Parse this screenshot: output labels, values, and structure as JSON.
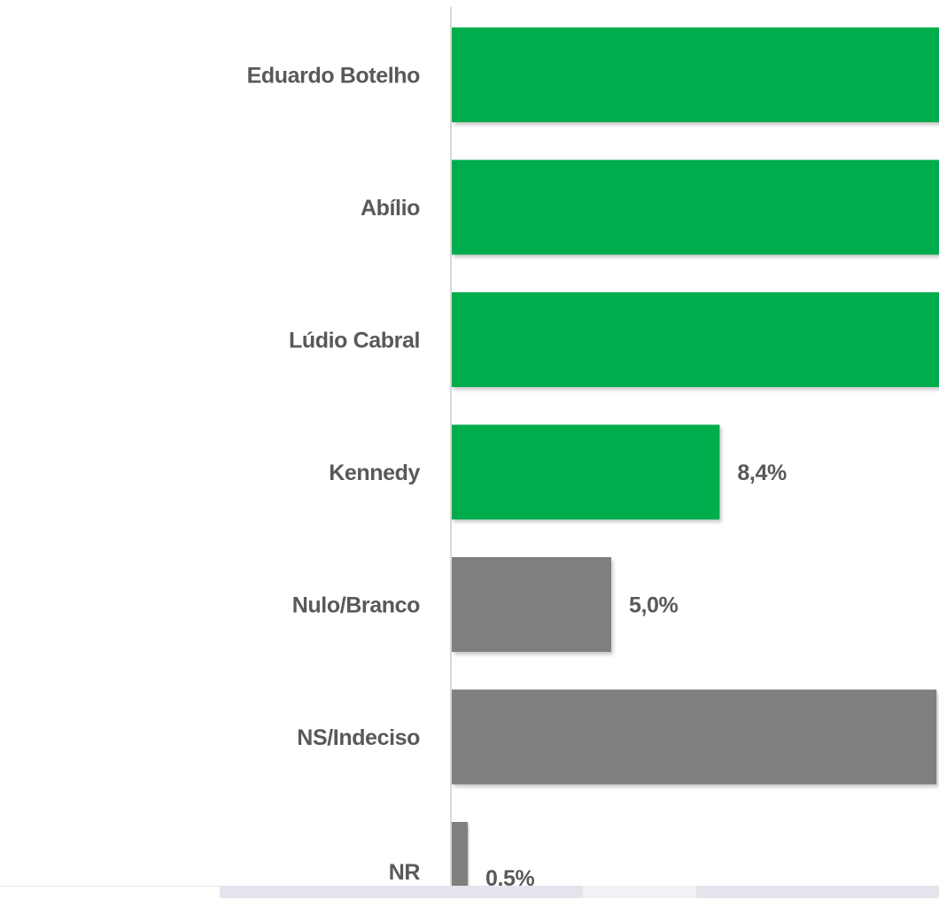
{
  "chart_data": {
    "type": "bar",
    "orientation": "horizontal",
    "title": "",
    "xlabel": "",
    "ylabel": "",
    "categories": [
      "Eduardo Botelho",
      "Abílio",
      "Lúdio Cabral",
      "Kennedy",
      "Nulo/Branco",
      "NS/Indeciso",
      "NR"
    ],
    "values": [
      null,
      null,
      null,
      8.4,
      5.0,
      15.2,
      0.5
    ],
    "value_labels": [
      "",
      "",
      "",
      "8,4%",
      "5,0%",
      "",
      "0,5%"
    ],
    "bar_colors": [
      "#00ad4e",
      "#00ad4e",
      "#00ad4e",
      "#00ad4e",
      "#7f7f7f",
      "#7f7f7f",
      "#7f7f7f"
    ],
    "cropped_note_values_unknown": [
      true,
      true,
      true,
      false,
      false,
      false,
      false
    ],
    "xlim": [
      0,
      15.4
    ],
    "grid": false,
    "legend": "none"
  },
  "colors": {
    "green": "#00ad4e",
    "gray": "#7f7f7f",
    "label": "#595959",
    "axis": "#d9d9d9"
  }
}
